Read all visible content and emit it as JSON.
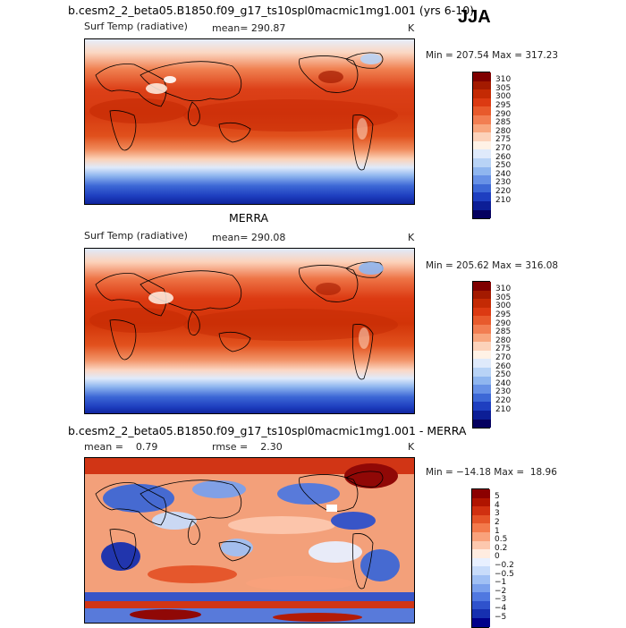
{
  "season": "JJA",
  "panels": [
    {
      "id": "model",
      "title": "b.cesm2_2_beta05.B1850.f09_g17_ts10spl0macmic1mg1.001 (yrs 6-10)",
      "var_label": "Surf Temp (radiative)",
      "stat_label": "mean= 290.87",
      "units": "K",
      "minmax": "Min = 207.54 Max = 317.23",
      "colorbar_labels": [
        "310",
        "305",
        "300",
        "295",
        "290",
        "285",
        "280",
        "275",
        "270",
        "260",
        "250",
        "240",
        "230",
        "220",
        "210"
      ],
      "colorbar_colors": [
        "#7f0000",
        "#a31a00",
        "#c42a04",
        "#dc3a12",
        "#e85a2c",
        "#f27e52",
        "#f8a67e",
        "#fcd2ba",
        "#fff2e6",
        "#dfeafb",
        "#b8d3f6",
        "#8fb6ef",
        "#6791e6",
        "#3d68d6",
        "#1e3fc0",
        "#0c1e96",
        "#05005f"
      ]
    },
    {
      "id": "obs",
      "title": "MERRA",
      "var_label": "Surf Temp (radiative)",
      "stat_label": "mean= 290.08",
      "units": "K",
      "minmax": "Min = 205.62 Max = 316.08",
      "colorbar_labels": [
        "310",
        "305",
        "300",
        "295",
        "290",
        "285",
        "280",
        "275",
        "270",
        "260",
        "250",
        "240",
        "230",
        "220",
        "210"
      ],
      "colorbar_colors": [
        "#7f0000",
        "#a31a00",
        "#c42a04",
        "#dc3a12",
        "#e85a2c",
        "#f27e52",
        "#f8a67e",
        "#fcd2ba",
        "#fff2e6",
        "#dfeafb",
        "#b8d3f6",
        "#8fb6ef",
        "#6791e6",
        "#3d68d6",
        "#1e3fc0",
        "#0c1e96",
        "#05005f"
      ]
    },
    {
      "id": "diff",
      "title": "b.cesm2_2_beta05.B1850.f09_g17_ts10spl0macmic1mg1.001 - MERRA",
      "var_label": "mean =    0.79",
      "stat_label": "rmse =    2.30",
      "units": "K",
      "minmax": "Min = −14.18 Max =  18.96",
      "colorbar_labels": [
        "5",
        "4",
        "3",
        "2",
        "1",
        "0.5",
        "0.2",
        "0",
        "−0.2",
        "−0.5",
        "−1",
        "−2",
        "−3",
        "−4",
        "−5"
      ],
      "colorbar_colors": [
        "#8b0000",
        "#b01400",
        "#d03010",
        "#e55428",
        "#f37a4c",
        "#f9a27c",
        "#fdc8ae",
        "#ffece0",
        "#e8f0ff",
        "#c8dcfa",
        "#a0c0f4",
        "#7aa0ec",
        "#5078e0",
        "#2f52cc",
        "#1630b0",
        "#00008a"
      ]
    }
  ]
}
